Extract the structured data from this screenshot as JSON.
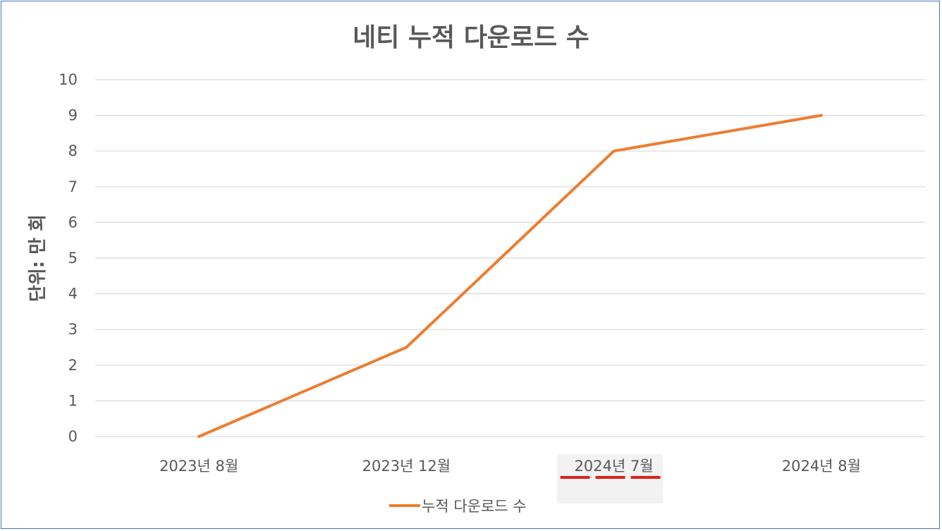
{
  "chart_data": {
    "type": "line",
    "title": "네티 누적 다운로드 수",
    "xlabel": "",
    "ylabel": "단위: 만 회",
    "categories": [
      "2023년 8월",
      "2023년 12월",
      "2024년 7월",
      "2024년 8월"
    ],
    "series": [
      {
        "name": "누적 다운로드 수",
        "values": [
          0,
          2.5,
          8,
          9
        ],
        "color": "#ed7d31"
      }
    ],
    "ylim": [
      0,
      10
    ],
    "yticks": [
      "0",
      "1",
      "2",
      "3",
      "4",
      "5",
      "6",
      "7",
      "8",
      "9",
      "10"
    ],
    "grid": true,
    "legend": "bottom",
    "gridline_color": "#d9d9d9",
    "highlight": {
      "category_index": 2,
      "background": "#f2f2f2",
      "underline_color": "#e0201b"
    }
  }
}
